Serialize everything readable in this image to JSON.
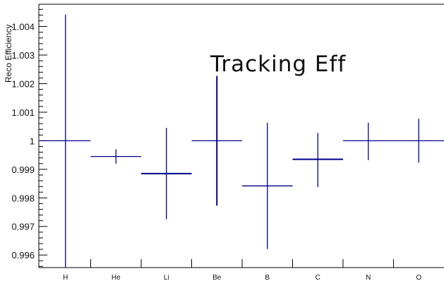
{
  "chart_data": {
    "type": "errorbar",
    "title": "Tracking Eff",
    "xlabel": "",
    "ylabel": "Reco Efficiency",
    "categories": [
      "H",
      "He",
      "Li",
      "Be",
      "B",
      "C",
      "N",
      "O"
    ],
    "series": [
      {
        "values": [
          1.0,
          0.99945,
          0.99885,
          1.0,
          0.99842,
          0.99935,
          1.0,
          1.0
        ],
        "error_low": [
          0.00442,
          0.00025,
          0.0016,
          0.00227,
          0.00221,
          0.00097,
          0.00068,
          0.00077
        ],
        "error_high": [
          0.00442,
          0.00025,
          0.0016,
          0.00227,
          0.00221,
          0.00092,
          0.00063,
          0.00077
        ]
      }
    ],
    "ylim": [
      0.99556,
      1.00478
    ],
    "yticks": [
      "0.996",
      "0.997",
      "0.998",
      "0.999",
      "1",
      "1.001",
      "1.002",
      "1.003",
      "1.004"
    ],
    "grid": false,
    "legend": "none",
    "colors": {
      "marker": "#00008b",
      "axis": "#000000"
    }
  }
}
